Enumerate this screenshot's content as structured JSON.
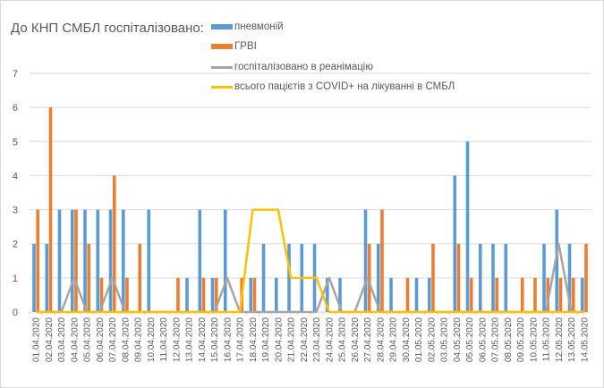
{
  "chart_data": {
    "type": "bar",
    "title": "До КНП СМБЛ госпіталізовано:",
    "xlabel": "",
    "ylabel": "",
    "ylim": [
      0,
      7
    ],
    "yticks": [
      "0",
      "1",
      "2",
      "3",
      "4",
      "5",
      "6",
      "7"
    ],
    "grid": true,
    "legend_position": "top-center",
    "categories": [
      "01.04.2020",
      "02.04.2020",
      "03.04.2020",
      "04.04.2020",
      "05.04.2020",
      "06.04.2020",
      "07.04.2020",
      "08.04.2020",
      "09.04.2020",
      "10.04.2020",
      "11.04.2020",
      "12.04.2020",
      "13.04.2020",
      "14.04.2020",
      "15.04.2020",
      "16.04.2020",
      "17.04.2020",
      "18.04.2020",
      "19.04.2020",
      "20.04.2020",
      "21.04.2020",
      "22.04.2020",
      "23.04.2020",
      "24.04.2020",
      "25.04.2020",
      "26.04.2020",
      "27.04.2020",
      "28.04.2020",
      "29.04.2020",
      "30.04.2020",
      "01.05.2020",
      "02.05.2020",
      "03.05.2020",
      "04.05.2020",
      "05.05.2020",
      "06.05.2020",
      "07.05.2020",
      "08.05.2020",
      "09.05.2020",
      "10.05.2020",
      "11.05.2020",
      "12.05.2020",
      "13.05.2020",
      "14.05.2020"
    ],
    "series": [
      {
        "name": "пневмоній",
        "kind": "bar",
        "color": "#5b9bd5",
        "values": [
          2,
          2,
          3,
          3,
          3,
          3,
          3,
          3,
          0,
          3,
          0,
          0,
          1,
          3,
          1,
          3,
          0,
          1,
          2,
          1,
          2,
          2,
          2,
          1,
          1,
          0,
          3,
          2,
          1,
          0,
          1,
          1,
          0,
          4,
          5,
          2,
          2,
          2,
          0,
          0,
          2,
          3,
          2,
          1
        ]
      },
      {
        "name": "ГРВІ",
        "kind": "bar",
        "color": "#ed7d31",
        "values": [
          3,
          6,
          0,
          3,
          2,
          1,
          4,
          1,
          2,
          0,
          0,
          1,
          0,
          1,
          1,
          0,
          1,
          1,
          0,
          0,
          0,
          0,
          0,
          0,
          0,
          0,
          2,
          3,
          0,
          1,
          0,
          2,
          0,
          2,
          1,
          0,
          1,
          0,
          1,
          1,
          1,
          1,
          1,
          2
        ]
      },
      {
        "name": "госпіталізовано в реанімацію",
        "kind": "line",
        "color": "#a5a5a5",
        "values": [
          0,
          0,
          0,
          1,
          0,
          0,
          1,
          0,
          0,
          0,
          0,
          0,
          0,
          0,
          0,
          1,
          0,
          0,
          0,
          0,
          0,
          0,
          0,
          1,
          0,
          0,
          1,
          0,
          0,
          0,
          0,
          0,
          0,
          0,
          0,
          0,
          0,
          0,
          0,
          0,
          0,
          2,
          0,
          0
        ]
      },
      {
        "name": "всього пацієтів з COVID+ на лікуванні в СМБЛ",
        "kind": "line",
        "color": "#ffc000",
        "values": [
          0,
          0,
          0,
          0,
          0,
          0,
          0,
          0,
          0,
          0,
          0,
          0,
          0,
          0,
          0,
          0,
          0,
          3,
          3,
          3,
          1,
          1,
          1,
          0,
          0,
          0,
          0,
          0,
          0,
          0,
          0,
          0,
          0,
          0,
          0,
          0,
          0,
          0,
          0,
          0,
          0,
          0,
          0,
          0
        ]
      }
    ]
  }
}
